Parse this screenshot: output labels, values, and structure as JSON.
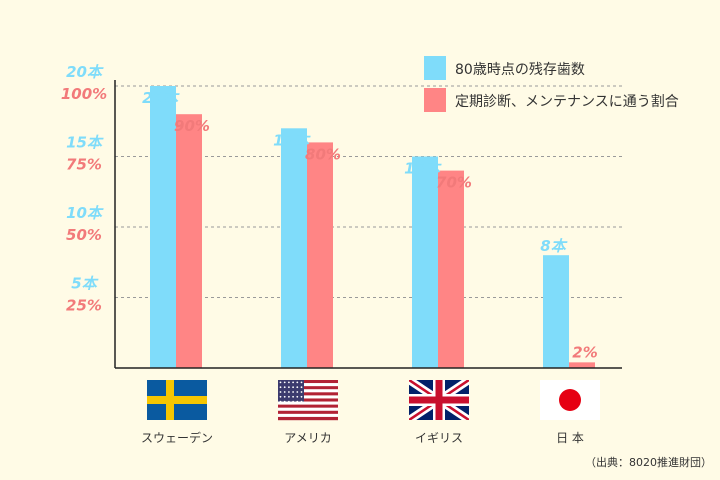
{
  "colors": {
    "background": "#fffbe6",
    "teeth": "#7fdcfa",
    "checkup": "#ff8585",
    "teeth_text": "#7fdcfa",
    "checkup_text": "#f27a7a",
    "grid": "#9a9a9a",
    "axis": "#222222"
  },
  "legend": {
    "teeth_label": "80歳時点の残存歯数",
    "checkup_label": "定期診断、メンテナンスに通う割合"
  },
  "source": "（出典：8020推進財団）",
  "chart_data": {
    "type": "bar",
    "categories": [
      "スウェーデン",
      "アメリカ",
      "イギリス",
      "日 本"
    ],
    "flags": [
      "sweden-flag",
      "usa-flag",
      "uk-flag",
      "japan-flag"
    ],
    "series": [
      {
        "name": "80歳時点の残存歯数",
        "values": [
          20,
          17,
          15,
          8
        ],
        "unit": "本",
        "ylim": [
          0,
          20
        ],
        "labels": [
          "20本",
          "17本",
          "15本",
          "8本"
        ]
      },
      {
        "name": "定期診断、メンテナンスに通う割合",
        "values": [
          90,
          80,
          70,
          2
        ],
        "unit": "%",
        "ylim": [
          0,
          100
        ],
        "labels": [
          "90%",
          "80%",
          "70%",
          "2%"
        ]
      }
    ],
    "yticks_teeth": [
      "5本",
      "10本",
      "15本",
      "20本"
    ],
    "yticks_pct": [
      "25%",
      "50%",
      "75%",
      "100%"
    ],
    "grid": "dashed",
    "legend_position": "top-right"
  }
}
